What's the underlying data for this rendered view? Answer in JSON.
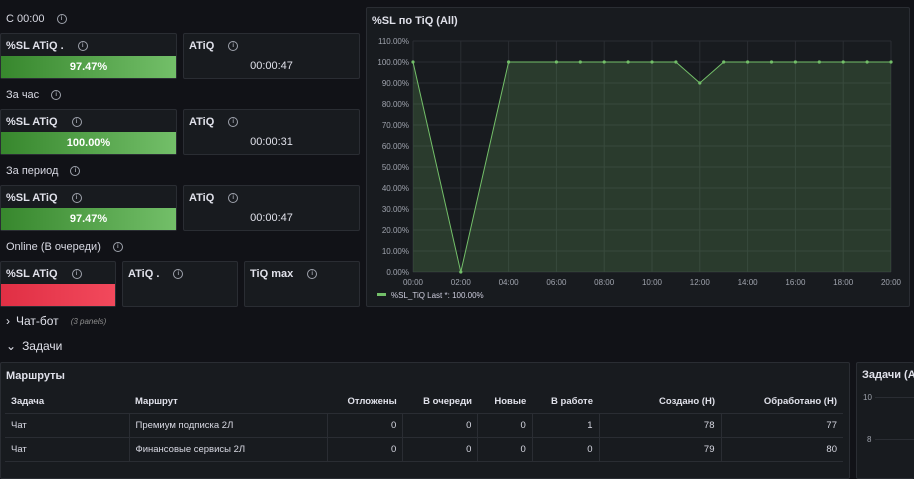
{
  "sections": {
    "c0000": "С 00:00",
    "hour": "За час",
    "period": "За период",
    "online": "Online (В очереди)"
  },
  "panels": {
    "c_sl": {
      "title": "%SL ATiQ .",
      "value": "97.47%",
      "fill": 1.0,
      "color": "#56a64b"
    },
    "c_atiq": {
      "title": "ATiQ",
      "value": "00:00:47"
    },
    "h_sl": {
      "title": "%SL ATiQ",
      "value": "100.00%",
      "fill": 1.0,
      "color": "#56a64b"
    },
    "h_atiq": {
      "title": "ATiQ",
      "value": "00:00:31"
    },
    "p_sl": {
      "title": "%SL ATiQ",
      "value": "97.47%",
      "fill": 1.0,
      "color": "#56a64b"
    },
    "p_atiq": {
      "title": "ATiQ",
      "value": "00:00:47"
    },
    "o_sl": {
      "title": "%SL ATiQ",
      "fill": 1.0,
      "color": "#e02f44"
    },
    "o_atiq": {
      "title": "ATiQ ."
    },
    "o_tiq": {
      "title": "TiQ max"
    }
  },
  "rows": {
    "chatbot": {
      "title": "Чат-бот",
      "sub": "(3 panels)"
    },
    "tasks": {
      "title": "Задачи"
    }
  },
  "routes_table": {
    "title": "Маршруты",
    "columns": [
      "Задача",
      "Маршрут",
      "Отложены",
      "В очереди",
      "Новые",
      "В работе",
      "Создано (Н)",
      "Обработано (Н)"
    ],
    "rows": [
      [
        "Чат",
        "Премиум подписка 2Л",
        "0",
        "0",
        "0",
        "1",
        "78",
        "77"
      ],
      [
        "Чат",
        "Финансовые сервисы 2Л",
        "0",
        "0",
        "0",
        "0",
        "79",
        "80"
      ]
    ]
  },
  "tasks_panel": {
    "title": "Задачи (All)",
    "ticks": [
      "10",
      "8"
    ]
  },
  "chart_data": {
    "type": "area",
    "title": "%SL по TiQ (All)",
    "x_ticks": [
      "00:00",
      "02:00",
      "04:00",
      "06:00",
      "08:00",
      "10:00",
      "12:00",
      "14:00",
      "16:00",
      "18:00",
      "20:00"
    ],
    "y_ticks": [
      "110.00%",
      "100.00%",
      "90.00%",
      "80.00%",
      "70.00%",
      "60.00%",
      "50.00%",
      "40.00%",
      "30.00%",
      "20.00%",
      "10.00%",
      "0.00%"
    ],
    "ylim": [
      0,
      110
    ],
    "xlim": [
      0,
      20
    ],
    "series": [
      {
        "name": "%SL_TiQ",
        "color": "#73bf69",
        "x": [
          0,
          2,
          4,
          6,
          7,
          8,
          9,
          10,
          11,
          12,
          13,
          14,
          15,
          16,
          17,
          18,
          19,
          20
        ],
        "y": [
          100,
          0,
          100,
          100,
          100,
          100,
          100,
          100,
          100,
          90,
          100,
          100,
          100,
          100,
          100,
          100,
          100,
          100
        ]
      }
    ],
    "legend": {
      "text": "%SL_TiQ  Last *: 100.00%",
      "placement": "bottom-left"
    }
  }
}
